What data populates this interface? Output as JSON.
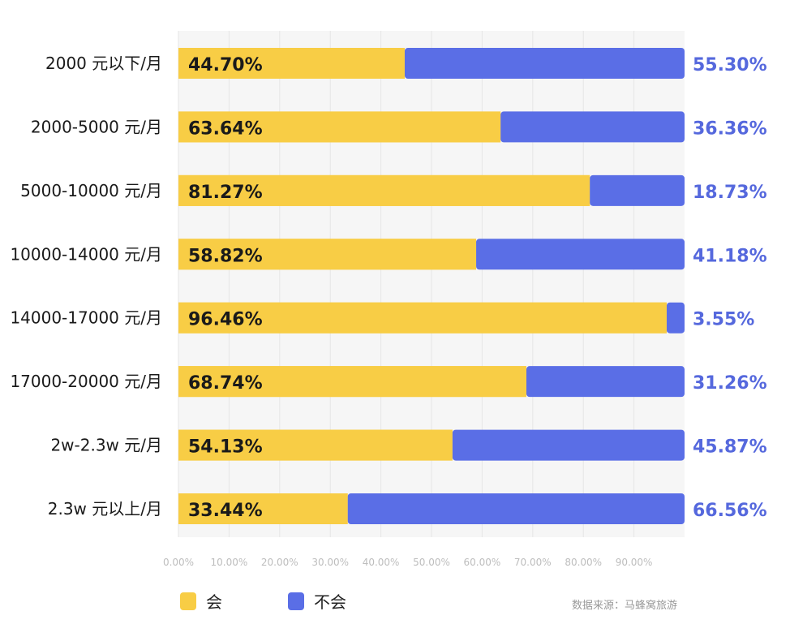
{
  "chart_data": {
    "type": "bar",
    "orientation": "horizontal",
    "stacked": true,
    "categories": [
      "2000 元以下/月",
      "2000-5000 元/月",
      "5000-10000 元/月",
      "10000-14000 元/月",
      "14000-17000 元/月",
      "17000-20000 元/月",
      "2w-2.3w 元/月",
      "2.3w 元以上/月"
    ],
    "series": [
      {
        "name": "会",
        "color": "#F8CD45",
        "values": [
          44.7,
          63.64,
          81.27,
          58.82,
          96.46,
          68.74,
          54.13,
          33.44
        ],
        "labels": [
          "44.70%",
          "63.64%",
          "81.27%",
          "58.82%",
          "96.46%",
          "68.74%",
          "54.13%",
          "33.44%"
        ]
      },
      {
        "name": "不会",
        "color": "#5A6EE6",
        "values": [
          55.3,
          36.36,
          18.73,
          41.18,
          3.55,
          31.26,
          45.87,
          66.56
        ],
        "labels": [
          "55.30%",
          "36.36%",
          "18.73%",
          "41.18%",
          "3.55%",
          "31.26%",
          "45.87%",
          "66.56%"
        ]
      }
    ],
    "xlim": [
      0,
      100
    ],
    "x_ticks": [
      "0.00%",
      "10.00%",
      "20.00%",
      "30.00%",
      "40.00%",
      "50.00%",
      "60.00%",
      "70.00%",
      "80.00%",
      "90.00%"
    ],
    "grid": true,
    "legend_position": "bottom-left"
  },
  "source": "数据来源：马蜂窝旅游",
  "label_color": "#5568DD"
}
